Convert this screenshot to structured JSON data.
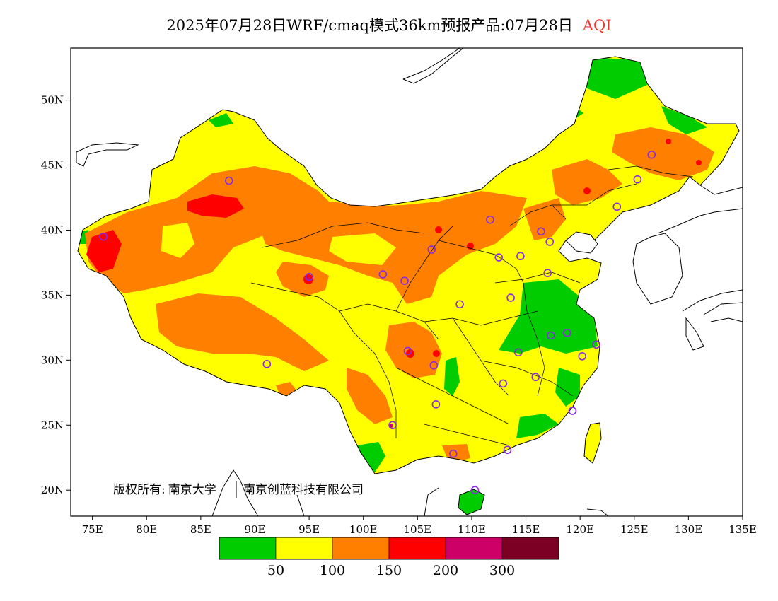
{
  "title": {
    "text": "2025年07月28日WRF/cmaq模式36km预报产品:07月28日",
    "variable": "AQI",
    "variable_color": "#e8382e"
  },
  "axes": {
    "lon_labels": [
      "75E",
      "80E",
      "85E",
      "90E",
      "95E",
      "100E",
      "105E",
      "110E",
      "115E",
      "120E",
      "125E",
      "130E",
      "135E"
    ],
    "lat_labels": [
      "50N",
      "45N",
      "40N",
      "35N",
      "30N",
      "25N",
      "20N"
    ],
    "lon_range": [
      73,
      135
    ],
    "lat_range": [
      18,
      54
    ]
  },
  "copyright": {
    "prefix": "版权所有:",
    "org1": "南京大学",
    "org2": "南京创蓝科技有限公司"
  },
  "legend": {
    "colors": [
      "#00cc00",
      "#ffff00",
      "#ff8000",
      "#ff0000",
      "#cc0066",
      "#7b0024"
    ],
    "names": [
      "green",
      "yellow",
      "orange",
      "red",
      "magenta",
      "maroon"
    ],
    "labels": [
      "50",
      "100",
      "150",
      "200",
      "300"
    ]
  },
  "stations": [
    {
      "lon": 87.6,
      "lat": 43.8
    },
    {
      "lon": 76.0,
      "lat": 39.5
    },
    {
      "lon": 101.8,
      "lat": 36.6
    },
    {
      "lon": 103.8,
      "lat": 36.1
    },
    {
      "lon": 106.3,
      "lat": 38.5
    },
    {
      "lon": 111.7,
      "lat": 40.8
    },
    {
      "lon": 116.4,
      "lat": 39.9
    },
    {
      "lon": 117.2,
      "lat": 39.1
    },
    {
      "lon": 112.5,
      "lat": 37.9
    },
    {
      "lon": 114.5,
      "lat": 38.0
    },
    {
      "lon": 108.9,
      "lat": 34.3
    },
    {
      "lon": 113.6,
      "lat": 34.8
    },
    {
      "lon": 117.0,
      "lat": 36.7
    },
    {
      "lon": 104.1,
      "lat": 30.7
    },
    {
      "lon": 106.5,
      "lat": 29.6
    },
    {
      "lon": 106.7,
      "lat": 26.6
    },
    {
      "lon": 102.7,
      "lat": 25.0
    },
    {
      "lon": 108.3,
      "lat": 22.8
    },
    {
      "lon": 113.3,
      "lat": 23.1
    },
    {
      "lon": 110.3,
      "lat": 20.0
    },
    {
      "lon": 112.9,
      "lat": 28.2
    },
    {
      "lon": 114.3,
      "lat": 30.6
    },
    {
      "lon": 115.9,
      "lat": 28.7
    },
    {
      "lon": 117.3,
      "lat": 31.9
    },
    {
      "lon": 118.8,
      "lat": 32.1
    },
    {
      "lon": 120.2,
      "lat": 30.3
    },
    {
      "lon": 121.5,
      "lat": 31.2
    },
    {
      "lon": 119.3,
      "lat": 26.1
    },
    {
      "lon": 123.4,
      "lat": 41.8
    },
    {
      "lon": 125.3,
      "lat": 43.9
    },
    {
      "lon": 126.6,
      "lat": 45.8
    },
    {
      "lon": 91.1,
      "lat": 29.7
    },
    {
      "lon": 95.0,
      "lat": 36.4
    }
  ]
}
